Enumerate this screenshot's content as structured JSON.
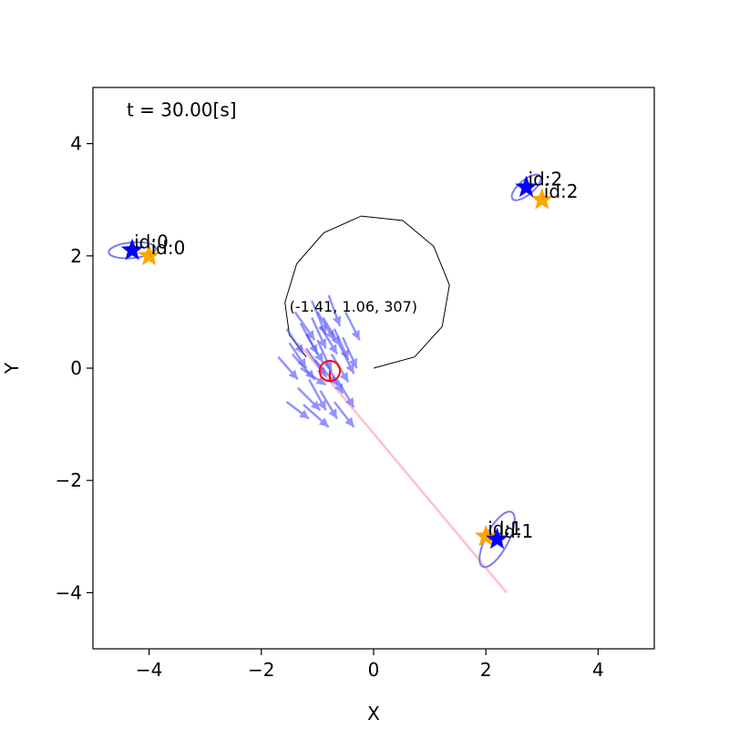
{
  "chart_data": {
    "type": "scatter",
    "xlabel": "X",
    "ylabel": "Y",
    "xlim": [
      -5,
      5
    ],
    "ylim": [
      -5,
      5
    ],
    "xticks": [
      -4,
      -2,
      0,
      2,
      4
    ],
    "yticks": [
      -4,
      -2,
      0,
      2,
      4
    ],
    "x_tick_labels": [
      "−4",
      "−2",
      "0",
      "2",
      "4"
    ],
    "y_tick_labels": [
      "−4",
      "−2",
      "0",
      "2",
      "4"
    ],
    "grid": false,
    "time_label": "t = 30.00[s]",
    "trajectory": [
      [
        0,
        0
      ],
      [
        0.73,
        0.2
      ],
      [
        1.22,
        0.74
      ],
      [
        1.35,
        1.48
      ],
      [
        1.07,
        2.17
      ],
      [
        0.52,
        2.63
      ],
      [
        -0.22,
        2.71
      ],
      [
        -0.89,
        2.41
      ],
      [
        -1.37,
        1.86
      ],
      [
        -1.58,
        1.17
      ],
      [
        -1.5,
        0.59
      ],
      [
        -1.2,
        0.2
      ]
    ],
    "pose_label": "(-1.41, 1.06, 307)",
    "robot": {
      "x": -0.78,
      "y": -0.05,
      "radius": 0.18
    },
    "observation_line": [
      [
        -1.35,
        0.45
      ],
      [
        2.37,
        -4.0
      ]
    ],
    "particles": [
      [
        -1.45,
        0.25,
        0.4,
        -0.45
      ],
      [
        -1.2,
        0.6,
        0.3,
        -0.5
      ],
      [
        -1.0,
        0.5,
        0.25,
        -0.55
      ],
      [
        -0.9,
        0.9,
        0.3,
        -0.5
      ],
      [
        -1.3,
        0.0,
        0.45,
        -0.3
      ],
      [
        -1.5,
        0.45,
        0.3,
        -0.45
      ],
      [
        -0.7,
        0.7,
        0.25,
        -0.55
      ],
      [
        -1.1,
        1.2,
        0.25,
        -0.6
      ],
      [
        -0.8,
        1.3,
        0.2,
        -0.55
      ],
      [
        -1.55,
        -0.6,
        0.4,
        -0.3
      ],
      [
        -1.25,
        -0.65,
        0.45,
        -0.4
      ],
      [
        -0.95,
        -0.4,
        0.3,
        -0.5
      ],
      [
        -0.7,
        -0.6,
        0.35,
        -0.45
      ],
      [
        -1.4,
        1.0,
        0.35,
        -0.5
      ],
      [
        -1.05,
        0.15,
        0.4,
        -0.45
      ],
      [
        -0.6,
        0.4,
        0.25,
        -0.5
      ],
      [
        -1.7,
        0.2,
        0.35,
        -0.4
      ],
      [
        -0.85,
        0.1,
        0.3,
        -0.55
      ],
      [
        -1.15,
        -0.2,
        0.3,
        -0.55
      ],
      [
        -0.5,
        1.0,
        0.25,
        -0.5
      ],
      [
        -1.3,
        0.8,
        0.3,
        -0.55
      ],
      [
        -1.0,
        1.0,
        0.3,
        -0.5
      ],
      [
        -0.75,
        0.25,
        0.3,
        -0.5
      ],
      [
        -1.2,
        0.35,
        0.35,
        -0.5
      ],
      [
        -0.95,
        0.75,
        0.3,
        -0.5
      ],
      [
        -1.55,
        0.7,
        0.3,
        -0.45
      ],
      [
        -0.65,
        -0.2,
        0.3,
        -0.5
      ],
      [
        -1.35,
        -0.35,
        0.4,
        -0.4
      ],
      [
        -0.55,
        0.55,
        0.25,
        -0.55
      ],
      [
        -1.1,
        0.9,
        0.25,
        -0.55
      ]
    ],
    "landmarks_true": [
      {
        "id": 0,
        "x": -4.0,
        "y": 2.0,
        "label": "id:0"
      },
      {
        "id": 1,
        "x": 2.0,
        "y": -3.0,
        "label": "id:1"
      },
      {
        "id": 2,
        "x": 3.0,
        "y": 3.0,
        "label": "id:2"
      }
    ],
    "landmarks_estimated": [
      {
        "id": 0,
        "x": -4.3,
        "y": 2.1,
        "label": "id:0",
        "ellipse": {
          "rx": 0.42,
          "ry": 0.14,
          "angle": 5
        }
      },
      {
        "id": 1,
        "x": 2.2,
        "y": -3.05,
        "label": "id:1",
        "ellipse": {
          "rx": 0.55,
          "ry": 0.2,
          "angle": 62
        }
      },
      {
        "id": 2,
        "x": 2.72,
        "y": 3.22,
        "label": "id:2",
        "ellipse": {
          "rx": 0.32,
          "ry": 0.13,
          "angle": 40
        }
      }
    ],
    "colors": {
      "true_landmark": "#ffa500",
      "estimated_landmark": "#0000ff",
      "ellipse": "#7b7bf0",
      "particle": "#5a5aff",
      "trajectory": "#000000",
      "robot": "#ff0000",
      "observation_line": "#ffc0cb"
    }
  }
}
